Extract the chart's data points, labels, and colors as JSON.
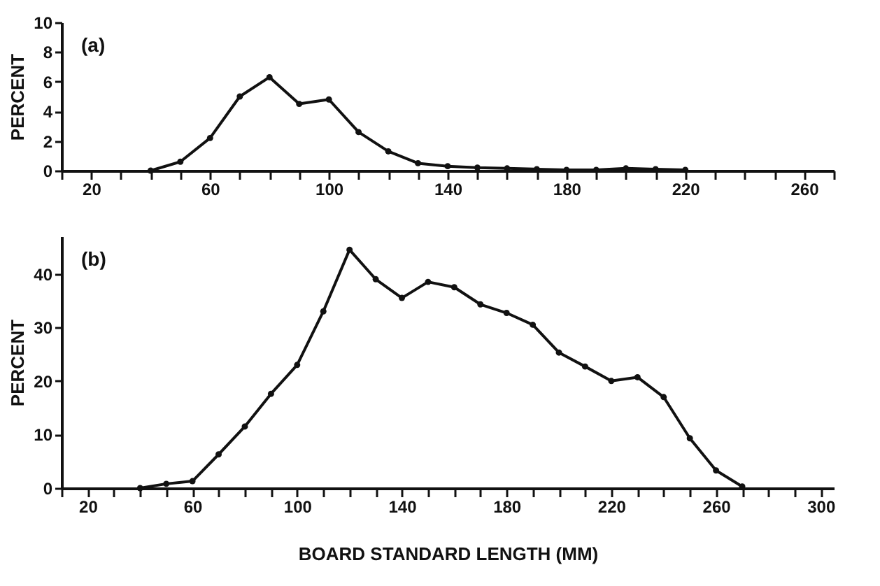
{
  "chart_data": [
    {
      "type": "line",
      "annotations": [
        "(a)"
      ],
      "ylabel": "PERCENT",
      "marker": "circle",
      "line_style": "solid",
      "x": [
        40,
        50,
        60,
        70,
        80,
        90,
        100,
        110,
        120,
        130,
        140,
        150,
        160,
        170,
        180,
        190,
        200,
        210,
        220
      ],
      "series": [
        {
          "color": "#111111",
          "values": [
            0,
            0.6,
            2.2,
            5.0,
            6.3,
            4.5,
            4.8,
            2.6,
            1.3,
            0.5,
            0.3,
            0.2,
            0.15,
            0.1,
            0.05,
            0.05,
            0.15,
            0.1,
            0.05
          ]
        }
      ],
      "xlim": [
        10,
        270
      ],
      "ylim": [
        0,
        10
      ],
      "yticks": [
        0,
        2,
        4,
        6,
        8,
        10
      ],
      "xticks": [
        {
          "value": 10,
          "label": null
        },
        20,
        {
          "value": 30,
          "label": null
        },
        {
          "value": 40,
          "label": null
        },
        {
          "value": 50,
          "label": null
        },
        60,
        {
          "value": 70,
          "label": null
        },
        {
          "value": 80,
          "label": null
        },
        {
          "value": 90,
          "label": null
        },
        100,
        {
          "value": 110,
          "label": null
        },
        {
          "value": 120,
          "label": null
        },
        {
          "value": 130,
          "label": null
        },
        140,
        {
          "value": 150,
          "label": null
        },
        {
          "value": 160,
          "label": null
        },
        {
          "value": 170,
          "label": null
        },
        180,
        {
          "value": 190,
          "label": null
        },
        {
          "value": 200,
          "label": null
        },
        {
          "value": 210,
          "label": null
        },
        220,
        {
          "value": 230,
          "label": null
        },
        {
          "value": 240,
          "label": null
        },
        {
          "value": 250,
          "label": null
        },
        260,
        {
          "value": 270,
          "label": null
        }
      ]
    },
    {
      "type": "line",
      "annotations": [
        "(b)"
      ],
      "ylabel": "PERCENT",
      "xlabel": "BOARD STANDARD LENGTH (MM)",
      "marker": "circle",
      "line_style": "solid",
      "x": [
        40,
        50,
        60,
        70,
        80,
        90,
        100,
        110,
        120,
        130,
        140,
        150,
        160,
        170,
        180,
        190,
        200,
        210,
        220,
        230,
        240,
        250,
        260,
        270
      ],
      "series": [
        {
          "color": "#111111",
          "values": [
            0,
            0.8,
            1.3,
            6.3,
            11.5,
            17.6,
            23,
            33,
            44.5,
            39,
            35.5,
            38.5,
            37.5,
            34.3,
            32.7,
            30.5,
            25.3,
            22.7,
            20,
            20.7,
            17,
            9.3,
            3.3,
            0.3
          ]
        }
      ],
      "xlim": [
        10,
        305
      ],
      "ylim": [
        0,
        47
      ],
      "yticks": [
        0,
        10,
        20,
        30,
        40
      ],
      "xticks": [
        {
          "value": 10,
          "label": null
        },
        20,
        {
          "value": 30,
          "label": null
        },
        {
          "value": 40,
          "label": null
        },
        {
          "value": 50,
          "label": null
        },
        60,
        {
          "value": 70,
          "label": null
        },
        {
          "value": 80,
          "label": null
        },
        {
          "value": 90,
          "label": null
        },
        100,
        {
          "value": 110,
          "label": null
        },
        {
          "value": 120,
          "label": null
        },
        {
          "value": 130,
          "label": null
        },
        140,
        {
          "value": 150,
          "label": null
        },
        {
          "value": 160,
          "label": null
        },
        {
          "value": 170,
          "label": null
        },
        180,
        {
          "value": 190,
          "label": null
        },
        {
          "value": 200,
          "label": null
        },
        {
          "value": 210,
          "label": null
        },
        220,
        {
          "value": 230,
          "label": null
        },
        {
          "value": 240,
          "label": null
        },
        {
          "value": 250,
          "label": null
        },
        260,
        {
          "value": 270,
          "label": null
        },
        {
          "value": 280,
          "label": null
        },
        {
          "value": 290,
          "label": null
        },
        300
      ]
    }
  ]
}
